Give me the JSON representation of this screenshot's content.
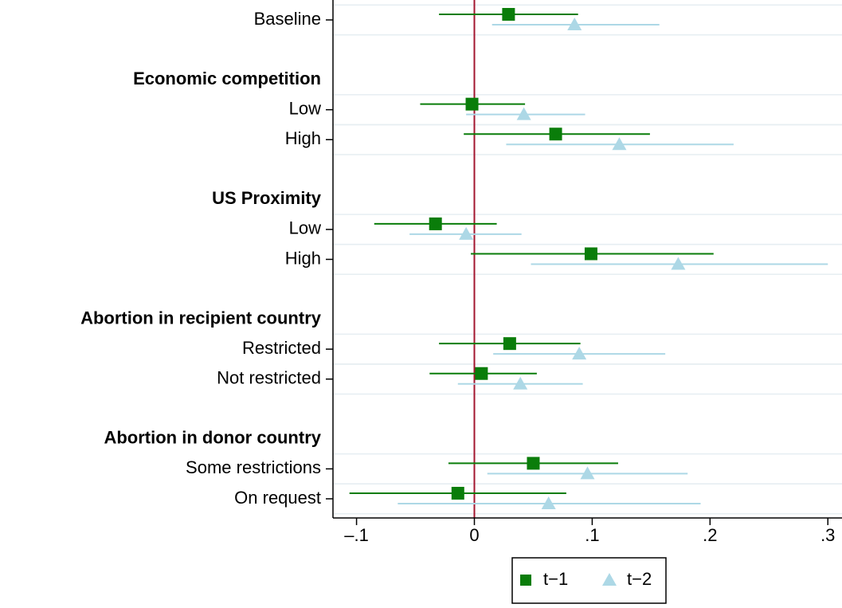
{
  "chart_data": {
    "type": "coefplot",
    "rows": [
      {
        "label": "Baseline",
        "header": false
      },
      {
        "label": "Economic competition",
        "header": true
      },
      {
        "label": "Low",
        "header": false
      },
      {
        "label": "High",
        "header": false
      },
      {
        "label": "US Proximity",
        "header": true
      },
      {
        "label": "Low",
        "header": false
      },
      {
        "label": "High",
        "header": false
      },
      {
        "label": "Abortion in recipient country",
        "header": true
      },
      {
        "label": "Restricted",
        "header": false
      },
      {
        "label": "Not restricted",
        "header": false
      },
      {
        "label": "Abortion in donor country",
        "header": true
      },
      {
        "label": "Some restrictions",
        "header": false
      },
      {
        "label": "On request",
        "header": false
      }
    ],
    "series": [
      {
        "name": "t−1",
        "color": "#0a7d0a",
        "marker": "square",
        "values": [
          0.029,
          null,
          -0.002,
          0.069,
          null,
          -0.033,
          0.099,
          null,
          0.03,
          0.006,
          null,
          0.05,
          -0.014
        ],
        "lower": [
          -0.03,
          null,
          -0.046,
          -0.009,
          null,
          -0.085,
          -0.003,
          null,
          -0.03,
          -0.038,
          null,
          -0.022,
          -0.106
        ],
        "upper": [
          0.088,
          null,
          0.043,
          0.149,
          null,
          0.019,
          0.203,
          null,
          0.09,
          0.053,
          null,
          0.122,
          0.078
        ]
      },
      {
        "name": "t−2",
        "color": "#add8e6",
        "marker": "triangle",
        "values": [
          0.085,
          null,
          0.042,
          0.123,
          null,
          -0.007,
          0.173,
          null,
          0.089,
          0.039,
          null,
          0.096,
          0.063
        ],
        "lower": [
          0.015,
          null,
          -0.007,
          0.027,
          null,
          -0.055,
          0.048,
          null,
          0.016,
          -0.014,
          null,
          0.011,
          -0.065
        ],
        "upper": [
          0.157,
          null,
          0.094,
          0.22,
          null,
          0.04,
          0.3,
          null,
          0.162,
          0.092,
          null,
          0.181,
          0.192
        ]
      }
    ],
    "xlim": [
      -0.12,
      0.312
    ],
    "xticks": [
      {
        "value": -0.1,
        "label": "–.1"
      },
      0,
      {
        "value": 0.1,
        "label": ".1"
      },
      {
        "value": 0.2,
        "label": ".2"
      },
      {
        "value": 0.3,
        "label": ".3"
      }
    ],
    "reference_line": {
      "value": 0,
      "color": "#a3162f"
    },
    "legend": "bottom"
  }
}
